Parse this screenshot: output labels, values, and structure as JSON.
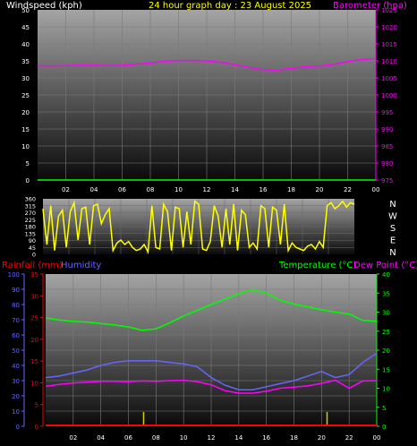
{
  "chart_data": [
    {
      "type": "line",
      "panel": "wind-baro",
      "title": "24 hour graph day : 23 August 2025",
      "left_axis_label": "Windspeed (kph)",
      "right_axis_label": "Barometer (hpa)",
      "left_ticks": [
        "0",
        "5",
        "10",
        "15",
        "20",
        "25",
        "30",
        "35",
        "40",
        "45",
        "50"
      ],
      "right_ticks": [
        "975",
        "980",
        "985",
        "990",
        "995",
        "1000",
        "1005",
        "1010",
        "1015",
        "1020",
        "1025"
      ],
      "x_ticks": [
        "02",
        "04",
        "06",
        "08",
        "10",
        "12",
        "14",
        "16",
        "18",
        "20",
        "22",
        "00"
      ],
      "left_ylim": [
        0,
        50
      ],
      "right_ylim": [
        975,
        1025
      ],
      "xlim": [
        0,
        24
      ],
      "grid": true,
      "colors": {
        "left_axis": "#ffffff",
        "title": "#ffff00",
        "right_axis": "#ff00ff",
        "barometer": "#ff00ff",
        "x_axis_line": "#00ff00"
      },
      "series": [
        {
          "key": "barometer",
          "axis": "right",
          "x": [
            0,
            1,
            2,
            3,
            4,
            5,
            6,
            7,
            8,
            9,
            10,
            11,
            12,
            13,
            14,
            15,
            16,
            17,
            18,
            19,
            20,
            21,
            22,
            23,
            24
          ],
          "values": [
            1008.6,
            1008.5,
            1008.6,
            1008.7,
            1008.7,
            1008.6,
            1008.7,
            1009.0,
            1009.4,
            1009.9,
            1010.1,
            1010.1,
            1010.0,
            1009.6,
            1008.9,
            1008.1,
            1007.4,
            1007.3,
            1007.8,
            1008.3,
            1008.5,
            1009.0,
            1009.8,
            1010.4,
            1010.7
          ]
        }
      ]
    },
    {
      "type": "line",
      "panel": "wind-direction",
      "left_ticks": [
        "0",
        "90",
        "180",
        "270",
        "360"
      ],
      "left_ticks_all": [
        "0",
        "45",
        "90",
        "135",
        "180",
        "225",
        "270",
        "315",
        "360"
      ],
      "right_labels": [
        "N",
        "W",
        "S",
        "E",
        "N"
      ],
      "ylim": [
        0,
        360
      ],
      "xlim": [
        0,
        24
      ],
      "colors": {
        "direction": "#ffff00"
      },
      "series": [
        {
          "key": "direction",
          "x": [
            0,
            0.3,
            0.6,
            0.9,
            1.2,
            1.5,
            1.8,
            2.1,
            2.4,
            2.7,
            3.0,
            3.3,
            3.6,
            3.9,
            4.2,
            4.5,
            4.8,
            5.1,
            5.4,
            5.7,
            6.0,
            6.3,
            6.6,
            6.9,
            7.2,
            7.5,
            7.8,
            8.1,
            8.4,
            8.7,
            9.0,
            9.3,
            9.6,
            9.9,
            10.2,
            10.5,
            10.8,
            11.1,
            11.4,
            11.7,
            12.0,
            12.3,
            12.6,
            12.9,
            13.2,
            13.5,
            13.8,
            14.1,
            14.4,
            14.7,
            15.0,
            15.3,
            15.6,
            15.9,
            16.2,
            16.5,
            16.8,
            17.1,
            17.4,
            17.7,
            18.0,
            18.3,
            18.6,
            18.9,
            19.2,
            19.5,
            19.8,
            20.1,
            20.4,
            20.7,
            21.0,
            21.3,
            21.6,
            21.9,
            22.2,
            22.5,
            22.8,
            23.1,
            23.4,
            23.7,
            24.0
          ],
          "values": [
            300,
            60,
            320,
            20,
            250,
            290,
            40,
            280,
            340,
            90,
            300,
            310,
            60,
            320,
            330,
            200,
            260,
            300,
            20,
            70,
            90,
            60,
            80,
            40,
            20,
            30,
            60,
            10,
            320,
            40,
            30,
            330,
            280,
            20,
            310,
            300,
            40,
            280,
            60,
            350,
            330,
            30,
            20,
            80,
            320,
            250,
            40,
            300,
            60,
            330,
            20,
            290,
            260,
            40,
            70,
            30,
            320,
            300,
            40,
            310,
            290,
            60,
            330,
            20,
            70,
            40,
            30,
            20,
            50,
            60,
            30,
            80,
            40,
            320,
            340,
            300,
            320,
            350,
            310,
            340,
            330
          ]
        }
      ]
    },
    {
      "type": "line",
      "panel": "temp-hum-rain",
      "legend": [
        "Rainfall (mm)",
        "Humidity",
        "Temperature (°C)",
        "Dew Point (°C)"
      ],
      "humidity_ticks": [
        "0",
        "10",
        "20",
        "30",
        "40",
        "50",
        "60",
        "70",
        "80",
        "90",
        "100"
      ],
      "rain_ticks": [
        "0",
        "5",
        "10",
        "15",
        "20",
        "25",
        "30",
        "35"
      ],
      "temp_ticks": [
        "0",
        "5",
        "10",
        "15",
        "20",
        "25",
        "30",
        "35",
        "40"
      ],
      "x_ticks": [
        "02",
        "04",
        "06",
        "08",
        "10",
        "12",
        "14",
        "16",
        "18",
        "20",
        "22",
        "00"
      ],
      "humidity_ylim": [
        0,
        100
      ],
      "rain_ylim": [
        0,
        35
      ],
      "temp_ylim": [
        0,
        40
      ],
      "xlim": [
        0,
        24
      ],
      "grid": true,
      "colors": {
        "rain": "#ff0000",
        "humidity": "#6666ff",
        "temperature": "#00ff00",
        "dewpoint": "#ff00ff",
        "rain_marker": "#cccc00"
      },
      "series": [
        {
          "key": "temperature",
          "axis": "temp",
          "x": [
            0,
            1,
            2,
            3,
            4,
            5,
            6,
            7,
            8,
            9,
            10,
            11,
            12,
            13,
            14,
            15,
            16,
            17,
            18,
            19,
            20,
            21,
            22,
            23,
            24
          ],
          "values": [
            28.5,
            27.9,
            27.6,
            27.4,
            27.0,
            26.6,
            26.1,
            25.2,
            25.6,
            27.2,
            29.0,
            30.5,
            32.0,
            33.4,
            34.8,
            35.9,
            35.0,
            33.1,
            32.1,
            31.4,
            30.6,
            30.0,
            29.5,
            27.8,
            27.6
          ]
        },
        {
          "key": "humidity",
          "axis": "humidity",
          "x": [
            0,
            1,
            2,
            3,
            4,
            5,
            6,
            7,
            8,
            9,
            10,
            11,
            12,
            13,
            14,
            15,
            16,
            17,
            18,
            19,
            20,
            21,
            22,
            23,
            24
          ],
          "values": [
            32,
            33,
            35,
            37,
            40,
            42,
            43,
            43,
            43,
            42,
            41,
            39,
            32,
            27,
            24,
            24,
            26,
            28,
            30,
            33,
            36,
            32,
            34,
            42,
            48
          ]
        },
        {
          "key": "dewpoint",
          "axis": "temp",
          "x": [
            0,
            1,
            2,
            3,
            4,
            5,
            6,
            7,
            8,
            9,
            10,
            11,
            12,
            13,
            14,
            15,
            16,
            17,
            18,
            19,
            20,
            21,
            22,
            23,
            24
          ],
          "values": [
            10.5,
            11.0,
            11.4,
            11.6,
            11.8,
            11.8,
            11.7,
            11.9,
            11.8,
            12.0,
            12.1,
            11.7,
            10.9,
            9.4,
            8.7,
            8.7,
            9.2,
            10.0,
            10.3,
            10.6,
            11.3,
            12.1,
            10.0,
            11.9,
            12.0
          ]
        },
        {
          "key": "rain",
          "axis": "rain",
          "x": [
            0,
            24
          ],
          "values": [
            0,
            0
          ]
        }
      ],
      "rain_markers_x": [
        7.1,
        20.4
      ]
    }
  ]
}
